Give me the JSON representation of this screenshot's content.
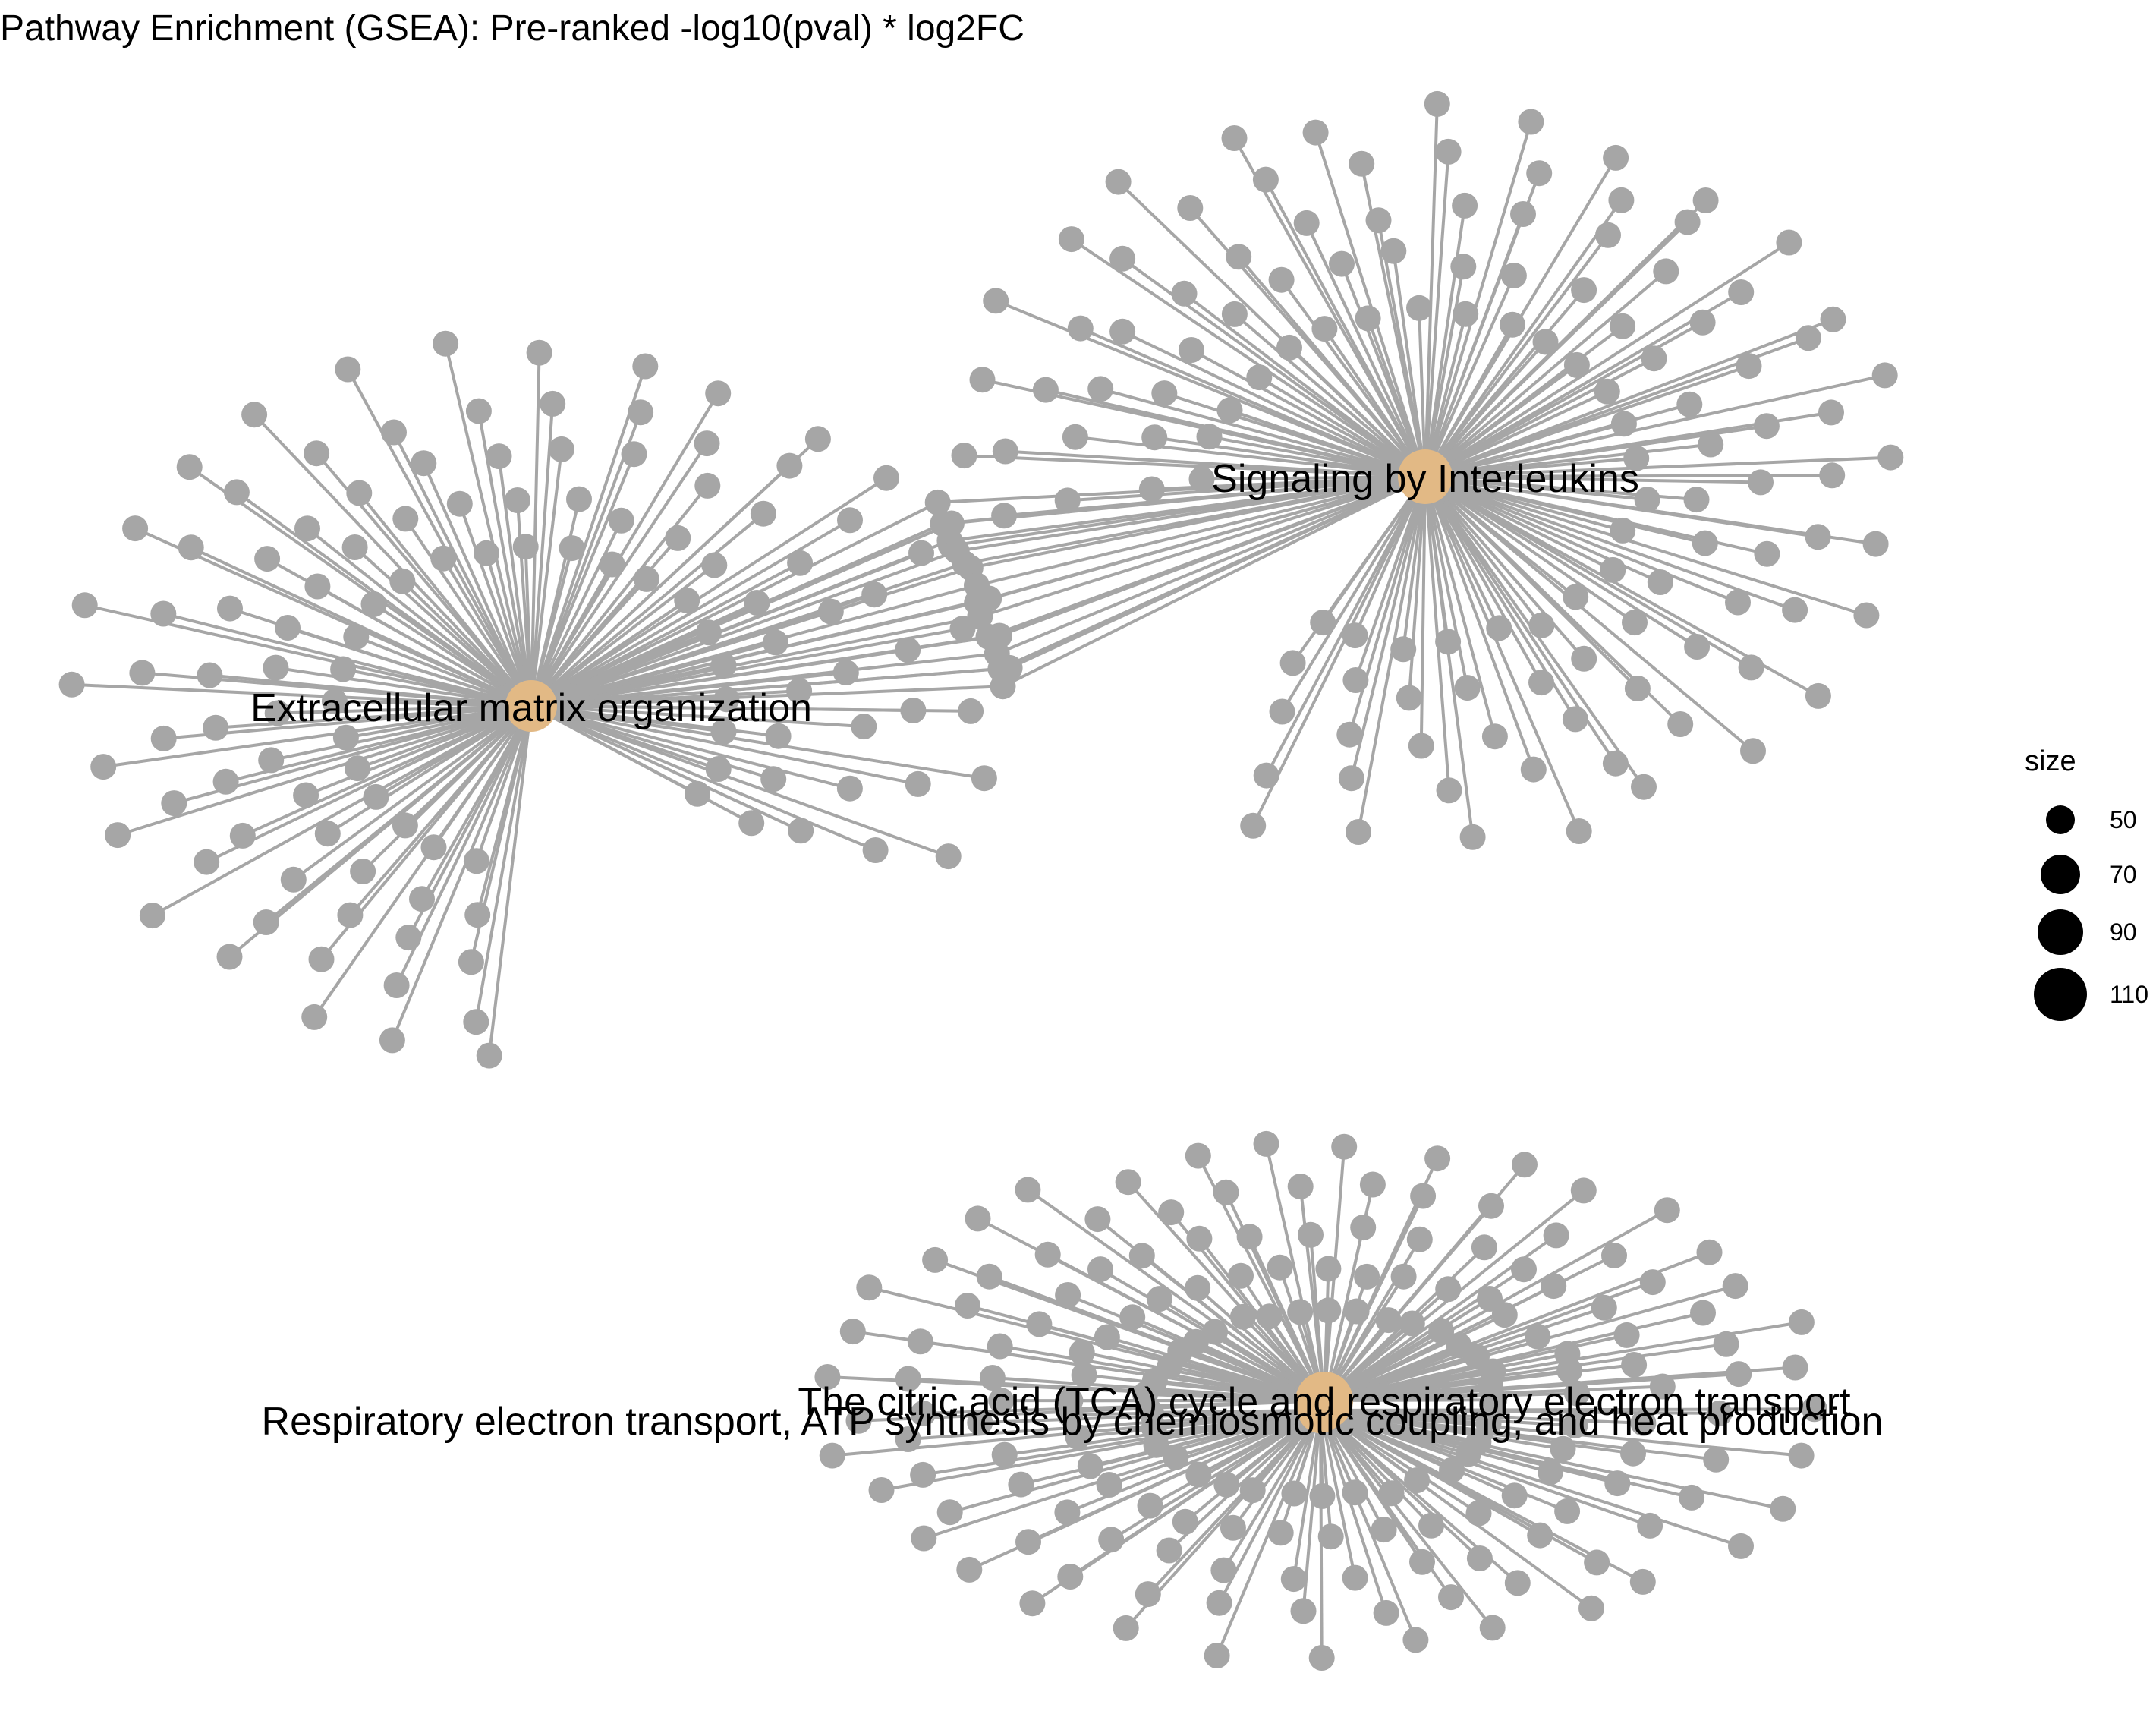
{
  "title": "Pathway Enrichment (GSEA): Pre-ranked -log10(pval) * log2FC",
  "colors": {
    "gene_node": "#a6a6a6",
    "category_node": "#e2b985",
    "edge": "#a6a6a6",
    "background": "#ffffff"
  },
  "legend": {
    "title": "size",
    "entries": [
      {
        "label": "50",
        "value": 50
      },
      {
        "label": "70",
        "value": 70
      },
      {
        "label": "90",
        "value": 90
      },
      {
        "label": "110",
        "value": 110
      }
    ]
  },
  "categories": [
    {
      "id": "ecm",
      "label": "Extracellular matrix organization",
      "size": 90
    },
    {
      "id": "il",
      "label": "Signaling by Interleukins",
      "size": 90
    },
    {
      "id": "tca",
      "label": "The citric acid (TCA) cycle and respiratory electron transport",
      "size": 110
    },
    {
      "id": "ret",
      "label": "Respiratory electron transport, ATP synthesis by chemiosmotic coupling, and heat production",
      "size": 90
    }
  ]
}
